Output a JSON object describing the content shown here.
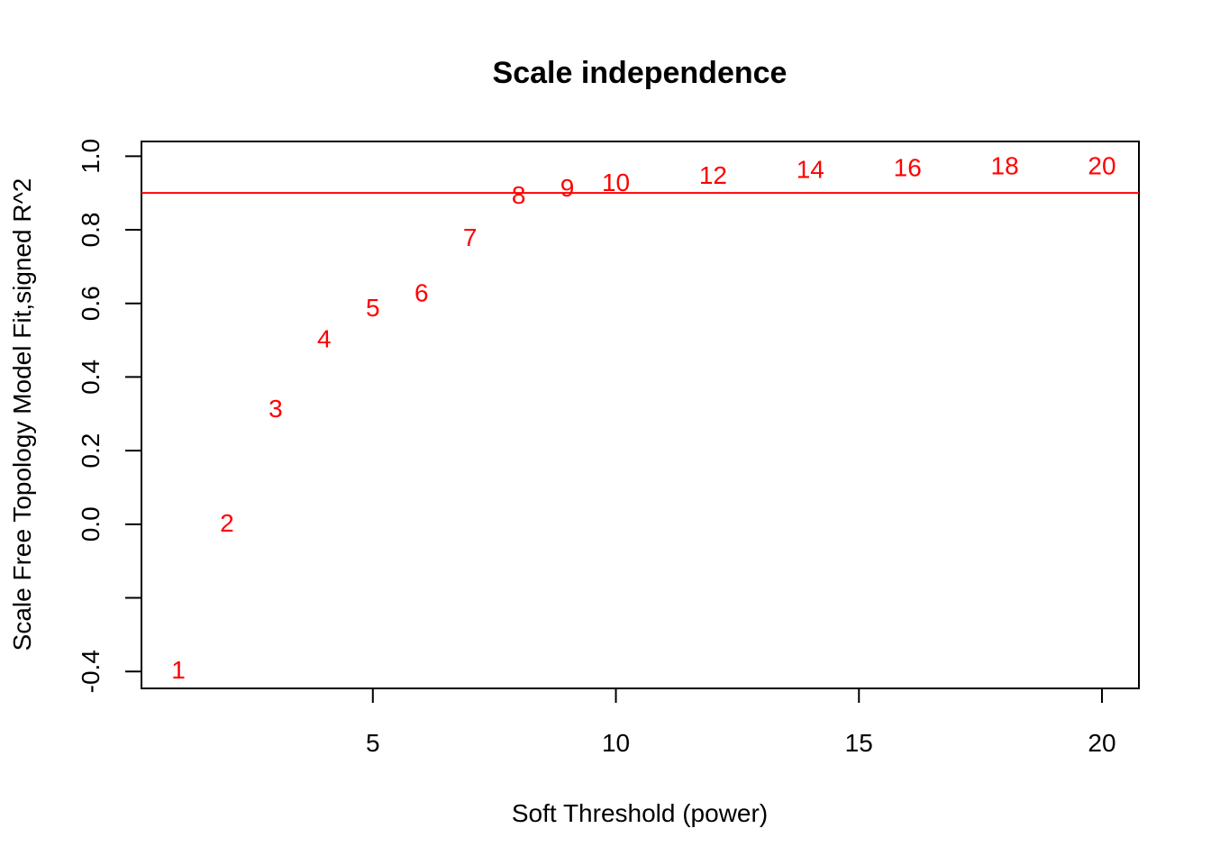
{
  "chart_data": {
    "type": "scatter",
    "title": "Scale independence",
    "xlabel": "Soft Threshold (power)",
    "ylabel": "Scale Free Topology Model Fit,signed R^2",
    "xlim": [
      0.24,
      20.76
    ],
    "ylim": [
      -0.446,
      1.04
    ],
    "x_ticks": [
      5,
      10,
      15,
      20
    ],
    "y_ticks": [
      -0.4,
      -0.2,
      0.0,
      0.2,
      0.4,
      0.6,
      0.8,
      1.0
    ],
    "y_tick_labels": [
      "-0.4",
      "",
      "0.0",
      "0.2",
      "0.4",
      "0.6",
      "0.8",
      "1.0"
    ],
    "grid": false,
    "marker": "text-label",
    "point_color": "#ff0000",
    "points": [
      {
        "x": 1,
        "y": -0.395,
        "label": "1"
      },
      {
        "x": 2,
        "y": 0.005,
        "label": "2"
      },
      {
        "x": 3,
        "y": 0.315,
        "label": "3"
      },
      {
        "x": 4,
        "y": 0.505,
        "label": "4"
      },
      {
        "x": 5,
        "y": 0.59,
        "label": "5"
      },
      {
        "x": 6,
        "y": 0.63,
        "label": "6"
      },
      {
        "x": 7,
        "y": 0.78,
        "label": "7"
      },
      {
        "x": 8,
        "y": 0.895,
        "label": "8"
      },
      {
        "x": 9,
        "y": 0.915,
        "label": "9"
      },
      {
        "x": 10,
        "y": 0.93,
        "label": "10"
      },
      {
        "x": 12,
        "y": 0.95,
        "label": "12"
      },
      {
        "x": 14,
        "y": 0.965,
        "label": "14"
      },
      {
        "x": 16,
        "y": 0.97,
        "label": "16"
      },
      {
        "x": 18,
        "y": 0.975,
        "label": "18"
      },
      {
        "x": 20,
        "y": 0.975,
        "label": "20"
      }
    ],
    "hline": {
      "y": 0.9,
      "color": "#ff0000"
    }
  }
}
